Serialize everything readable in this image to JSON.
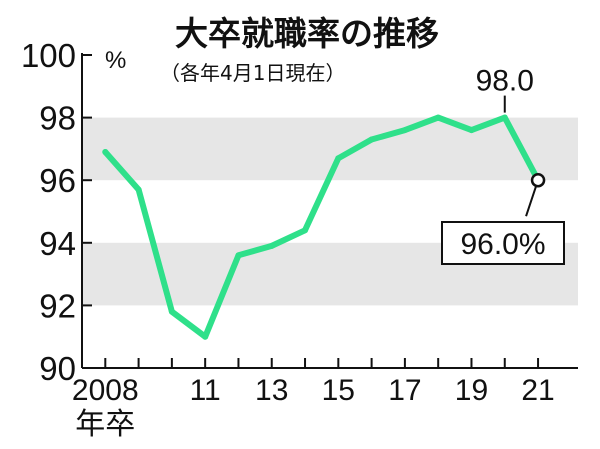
{
  "chart_data": {
    "type": "line",
    "title": "大卒就職率の推移",
    "subtitle": "（各年4月1日現在）",
    "unit": "%",
    "x": [
      2008,
      2009,
      2010,
      2011,
      2012,
      2013,
      2014,
      2015,
      2016,
      2017,
      2018,
      2019,
      2020,
      2021
    ],
    "values": [
      96.9,
      95.7,
      91.8,
      91.0,
      93.6,
      93.9,
      94.4,
      96.7,
      97.3,
      97.6,
      98.0,
      97.6,
      98.0,
      96.0
    ],
    "xticks": [
      {
        "x": 2008,
        "label": "2008"
      },
      {
        "x": 2011,
        "label": "11"
      },
      {
        "x": 2013,
        "label": "13"
      },
      {
        "x": 2015,
        "label": "15"
      },
      {
        "x": 2017,
        "label": "17"
      },
      {
        "x": 2019,
        "label": "19"
      },
      {
        "x": 2021,
        "label": "21"
      }
    ],
    "x_first_sublabel": "年卒",
    "yticks": [
      {
        "y": 90,
        "label": "90"
      },
      {
        "y": 92,
        "label": "92"
      },
      {
        "y": 94,
        "label": "94"
      },
      {
        "y": 96,
        "label": "96"
      },
      {
        "y": 98,
        "label": "98"
      },
      {
        "y": 100,
        "label": "100"
      }
    ],
    "ylim": [
      90,
      100
    ],
    "xlim": [
      2007.3,
      2022.2
    ],
    "shaded_bands": [
      [
        92,
        94
      ],
      [
        96,
        98
      ]
    ],
    "annotations": [
      {
        "x": 2020,
        "y": 98.0,
        "text": "98.0"
      },
      {
        "x": 2021,
        "y": 96.0,
        "text": "96.0%"
      }
    ],
    "colors": {
      "line": "#2fe08a",
      "band": "#e6e6e6",
      "axis": "#111111"
    }
  }
}
